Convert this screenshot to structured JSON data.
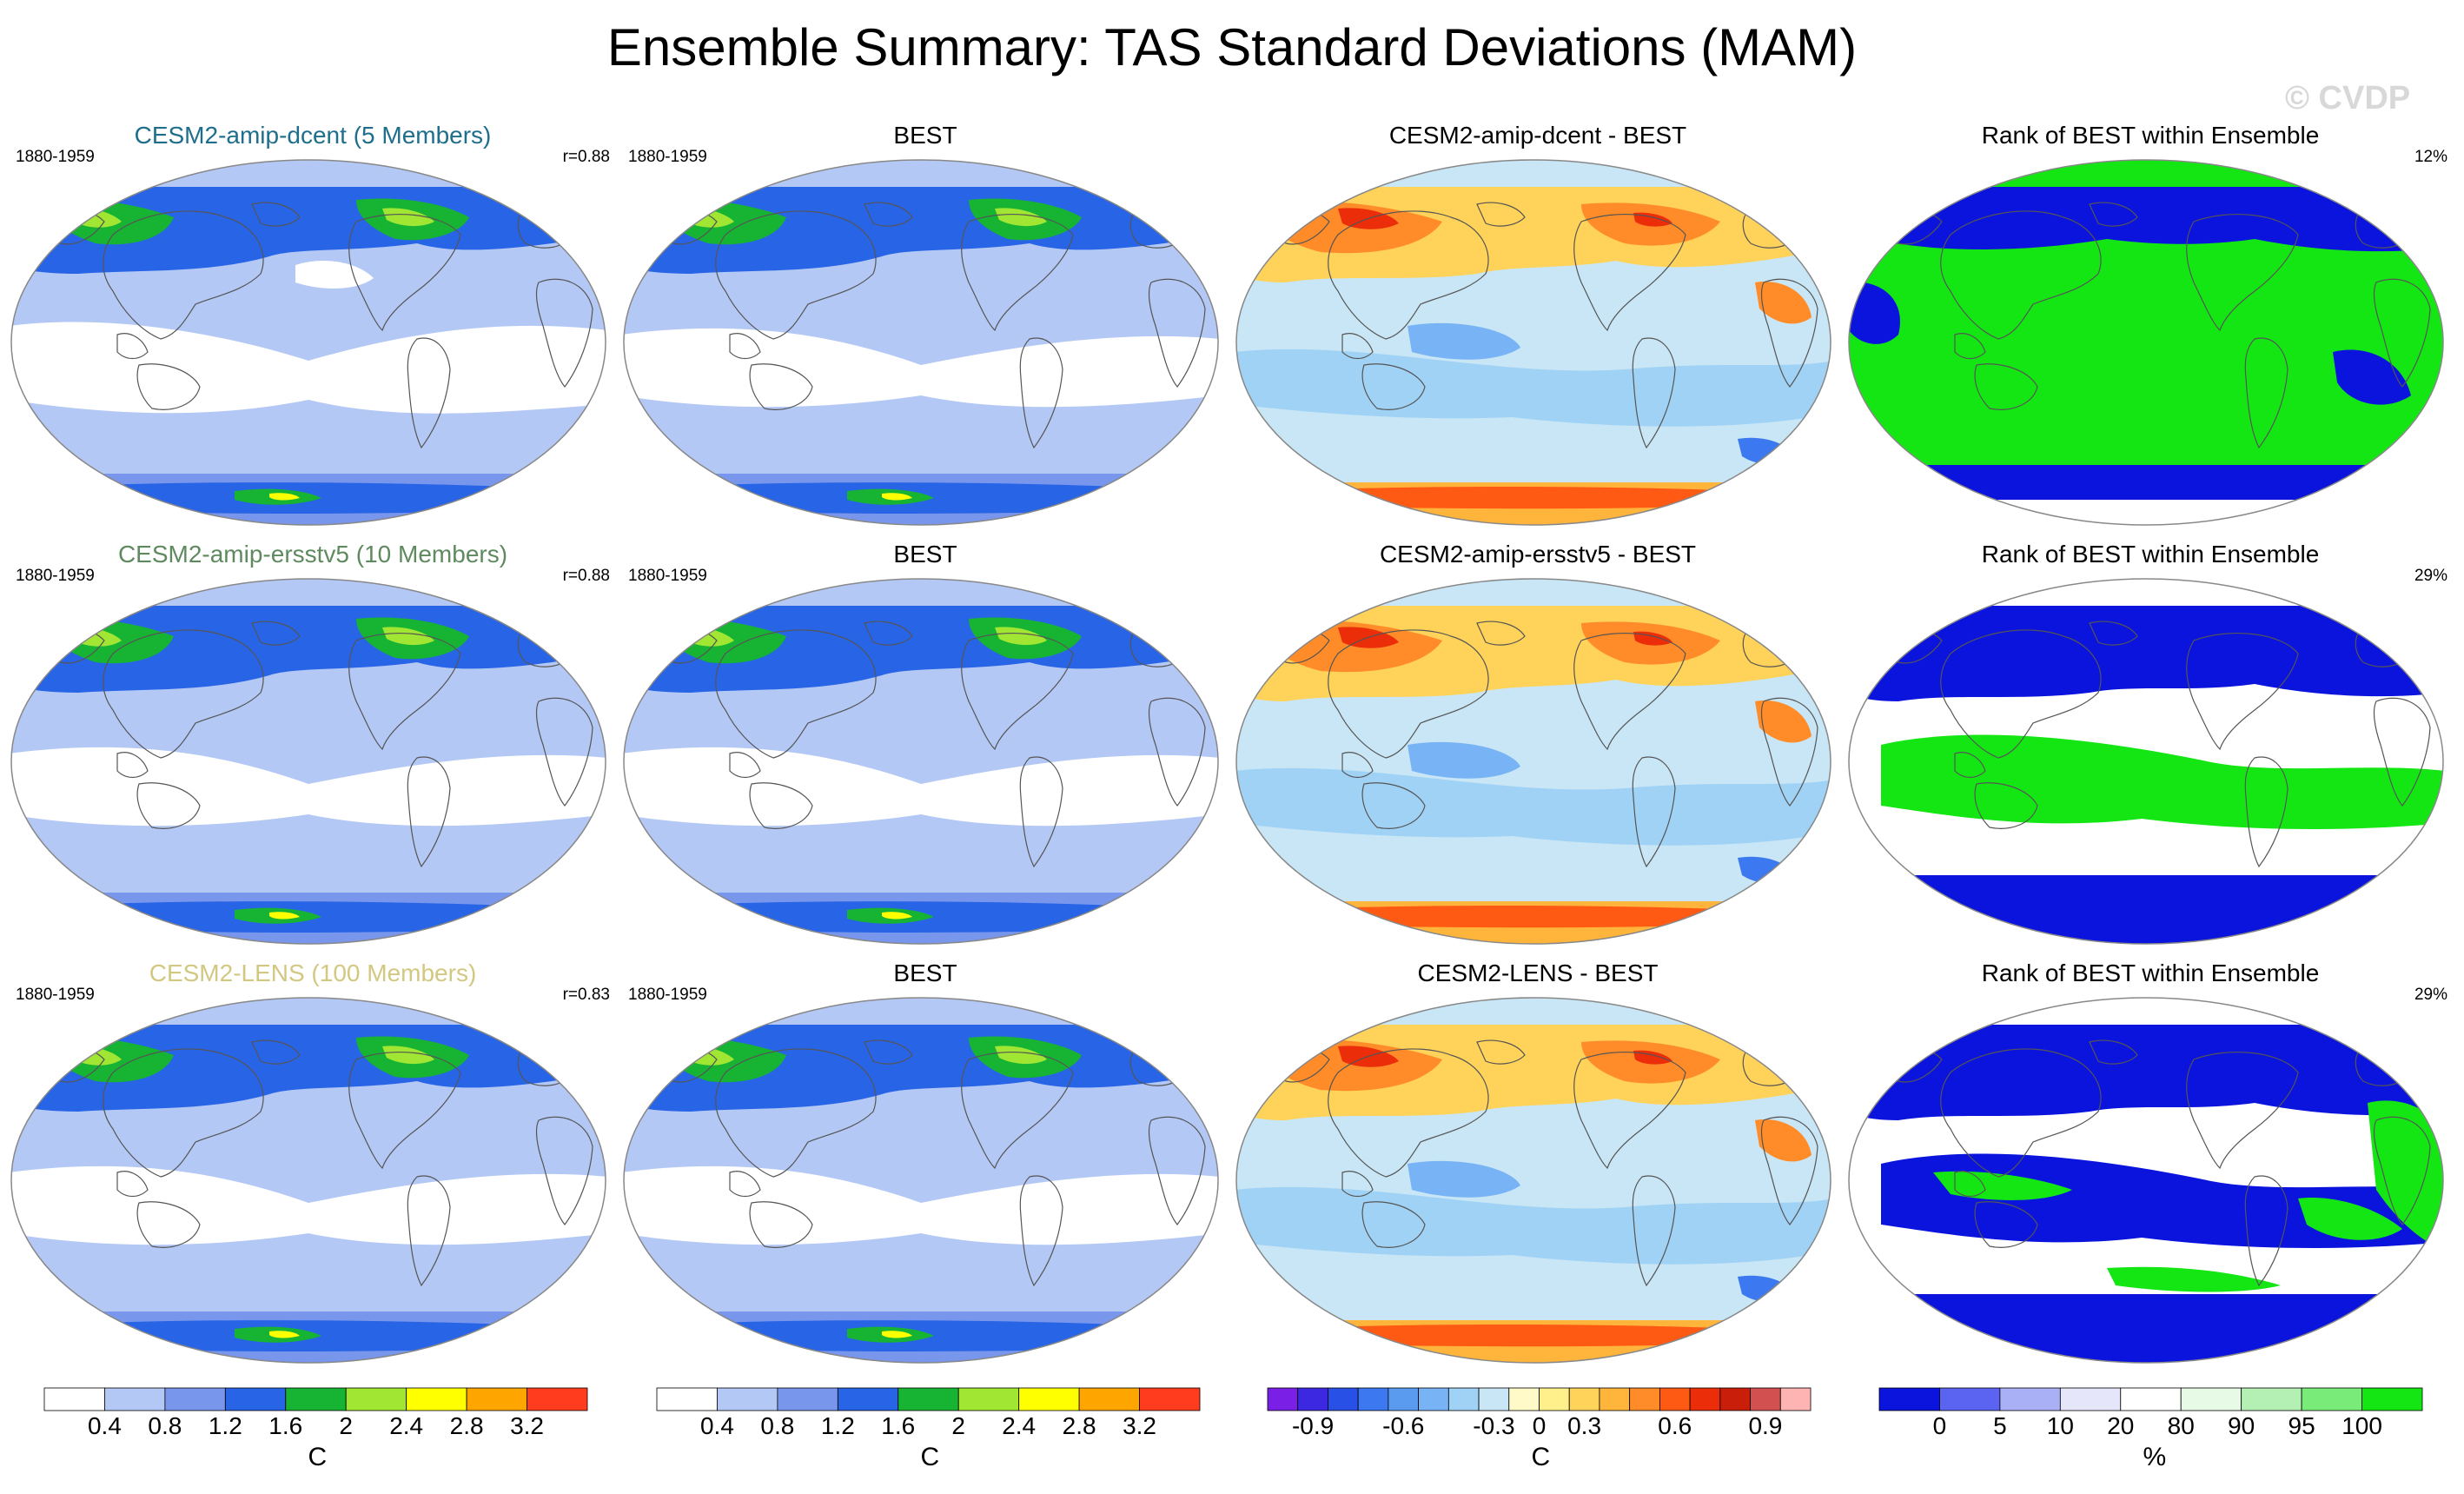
{
  "title": "Ensemble Summary: TAS Standard Deviations (MAM)",
  "watermark": "© CVDP",
  "rows": [
    {
      "model_title": "CESM2-amip-dcent (5 Members)",
      "model_color": "#1e6e8c",
      "period": "1880-1959",
      "r": "r=0.88",
      "obs_title": "BEST",
      "obs_period": "1880-1959",
      "diff_title": "CESM2-amip-dcent - BEST",
      "rank_title": "Rank of BEST within Ensemble",
      "rank_pct": "12%"
    },
    {
      "model_title": "CESM2-amip-ersstv5 (10 Members)",
      "model_color": "#5f8a5f",
      "period": "1880-1959",
      "r": "r=0.88",
      "obs_title": "BEST",
      "obs_period": "1880-1959",
      "diff_title": "CESM2-amip-ersstv5 - BEST",
      "rank_title": "Rank of BEST within Ensemble",
      "rank_pct": "29%"
    },
    {
      "model_title": "CESM2-LENS (100 Members)",
      "model_color": "#d2c882",
      "period": "1880-1959",
      "r": "r=0.83",
      "obs_title": "BEST",
      "obs_period": "1880-1959",
      "diff_title": "CESM2-LENS - BEST",
      "rank_title": "Rank of BEST within Ensemble",
      "rank_pct": "29%"
    }
  ],
  "colorbars": {
    "stddev": {
      "colors": [
        "#ffffff",
        "#b4c8f5",
        "#7896eb",
        "#2864e6",
        "#16b432",
        "#a0e632",
        "#ffff00",
        "#ffa500",
        "#ff3c1e"
      ],
      "labels": [
        "0.4",
        "0.8",
        "1.2",
        "1.6",
        "2",
        "2.4",
        "2.8",
        "3.2"
      ],
      "unit": "C"
    },
    "diff": {
      "colors": [
        "#7a1fe6",
        "#3c28e0",
        "#2850e6",
        "#3c78f0",
        "#5a9bf0",
        "#78b4f5",
        "#a0d2f5",
        "#c8e6f5",
        "#fffac8",
        "#fff08c",
        "#ffd25a",
        "#ffb43c",
        "#ff8c28",
        "#ff5a14",
        "#eb2d0a",
        "#c81e0a",
        "#d25050",
        "#ffb4b4"
      ],
      "labels": [
        "-0.9",
        "-0.6",
        "-0.3",
        "0",
        "0.3",
        "0.6",
        "0.9"
      ],
      "label_index": [
        1.5,
        4.5,
        7.5,
        9,
        10.5,
        13.5,
        16.5
      ],
      "unit": "C"
    },
    "rank": {
      "colors": [
        "#0a14dc",
        "#5a64f0",
        "#aab0f5",
        "#e6e6fa",
        "#ffffff",
        "#e6fae6",
        "#b4f0b4",
        "#78eb78",
        "#14e614"
      ],
      "labels": [
        "0",
        "5",
        "10",
        "20",
        "80",
        "90",
        "95",
        "100"
      ],
      "unit": "%"
    }
  }
}
